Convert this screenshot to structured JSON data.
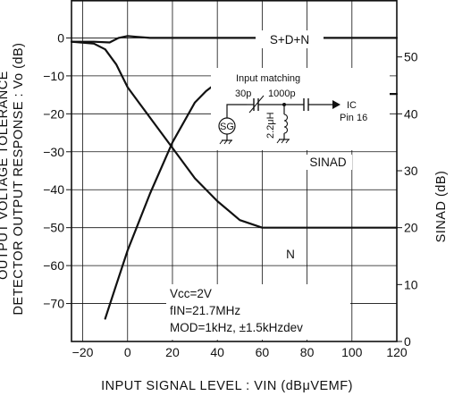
{
  "chart_data": {
    "type": "line",
    "xlabel": "INPUT SIGNAL LEVEL : VIN (dBμVEMF)",
    "ylabel_left": "DETECTOR OUTPUT RESPONSE : Vo (dB)",
    "ylabel_right": "SINAD (dB)",
    "ylabel_left_cut": "OUTPUT VOLTAGE TOLERANCE",
    "xlim": [
      -25,
      120
    ],
    "ylim_left": [
      -80,
      10
    ],
    "ylim_right": [
      0,
      60
    ],
    "x_ticks": [
      -20,
      0,
      20,
      40,
      60,
      80,
      100,
      120
    ],
    "x_tick_labels": [
      "−20",
      "0",
      "20",
      "40",
      "60",
      "80",
      "100",
      "120"
    ],
    "y_left_ticks": [
      0,
      -10,
      -20,
      -30,
      -40,
      -50,
      -60,
      -70
    ],
    "y_left_tick_labels": [
      "0",
      "−10",
      "−20",
      "−30",
      "−40",
      "−50",
      "−60",
      "−70"
    ],
    "y_right_ticks": [
      50,
      40,
      30,
      20,
      10,
      0
    ],
    "y_right_tick_labels": [
      "50",
      "40",
      "30",
      "20",
      "10",
      "0"
    ],
    "grid": true,
    "series": [
      {
        "name": "S+D+N",
        "axis": "left",
        "x": [
          -25,
          -15,
          -8,
          -4,
          0,
          4,
          10,
          20,
          60,
          120
        ],
        "y": [
          -1,
          -1,
          -1.2,
          0,
          0.5,
          0.3,
          0,
          0,
          0,
          0
        ]
      },
      {
        "name": "N",
        "axis": "left",
        "x": [
          -25,
          -15,
          -10,
          -5,
          0,
          5,
          10,
          20,
          30,
          40,
          50,
          60,
          80,
          120
        ],
        "y": [
          -1,
          -1.5,
          -3,
          -7,
          -13,
          -17,
          -21,
          -29,
          -37,
          -43,
          -48,
          -50,
          -50,
          -50
        ]
      },
      {
        "name": "SINAD",
        "axis": "right",
        "x": [
          -10,
          -5,
          0,
          10,
          20,
          30,
          35,
          40,
          50,
          60,
          70,
          80,
          90,
          100,
          110,
          120
        ],
        "y": [
          4,
          10,
          16,
          26,
          35,
          42,
          44,
          45.5,
          45.8,
          45.8,
          46.5,
          44.5,
          44,
          44,
          43.5,
          43.5
        ]
      }
    ],
    "labels": {
      "sdn": "S+D+N",
      "n": "N",
      "sinad": "SINAD"
    },
    "conditions": [
      "Vcc=2V",
      "fIN=21.7MHz",
      "MOD=1kHz, ±1.5kHzdev"
    ],
    "inset": {
      "title": "Input matching",
      "cap1": "30p",
      "cap2": "1000p",
      "inductor": "2.2μH",
      "source": "SG",
      "dest_line1": "IC",
      "dest_line2": "Pin 16"
    }
  }
}
